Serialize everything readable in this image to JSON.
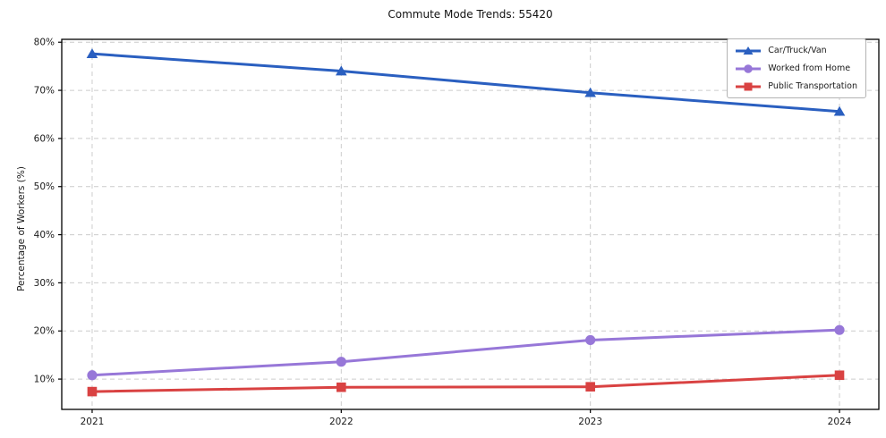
{
  "figure": {
    "title": "Commute Mode Trends: 55420",
    "ylabel": "Percentage of Workers (%)"
  },
  "chart_data": {
    "type": "line",
    "title": "Commute Mode Trends: 55420",
    "xlabel": "",
    "ylabel": "Percentage of Workers (%)",
    "x": [
      2021,
      2022,
      2023,
      2024
    ],
    "x_tick_labels": [
      "2021",
      "2022",
      "2023",
      "2024"
    ],
    "y_ticks": [
      10,
      20,
      30,
      40,
      50,
      60,
      70,
      80
    ],
    "y_tick_labels": [
      "10%",
      "20%",
      "30%",
      "40%",
      "50%",
      "60%",
      "70%",
      "80%"
    ],
    "ylim": [
      3.7,
      80.6
    ],
    "grid": true,
    "grid_style": "dashed",
    "legend_position": "upper right",
    "series": [
      {
        "name": "Car/Truck/Van",
        "color": "#2a5fc0",
        "marker": "triangle",
        "values": [
          77.6,
          74.0,
          69.5,
          65.6
        ]
      },
      {
        "name": "Worked from Home",
        "color": "#9777d8",
        "marker": "circle",
        "values": [
          10.8,
          13.6,
          18.1,
          20.2
        ]
      },
      {
        "name": "Public Transportation",
        "color": "#d94242",
        "marker": "square",
        "values": [
          7.4,
          8.3,
          8.4,
          10.8
        ]
      }
    ]
  }
}
